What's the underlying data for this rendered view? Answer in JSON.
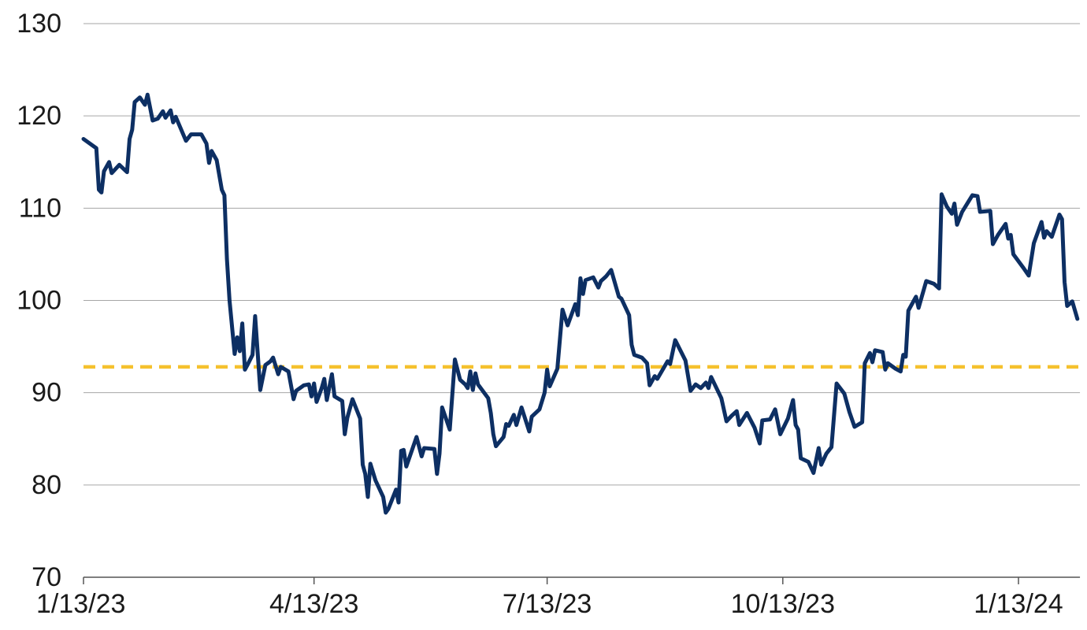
{
  "chart_data": {
    "type": "line",
    "color": "#0d2f63",
    "grid": true,
    "ylim": [
      70,
      130
    ],
    "yticks": [
      70,
      80,
      90,
      100,
      110,
      120,
      130
    ],
    "xlim": [
      "2023-01-13",
      "2024-02-06"
    ],
    "xticks": [
      {
        "value": "2023-01-13",
        "label": "1/13/23"
      },
      {
        "value": "2023-04-13",
        "label": "4/13/23"
      },
      {
        "value": "2023-07-13",
        "label": "7/13/23"
      },
      {
        "value": "2023-10-13",
        "label": "10/13/23"
      },
      {
        "value": "2024-01-13",
        "label": "1/13/24"
      }
    ],
    "reference_line": {
      "value": 92.8,
      "color": "#f5c12e",
      "style": "dashed"
    },
    "x": [
      "2023-01-13",
      "2023-01-18",
      "2023-01-19",
      "2023-01-20",
      "2023-01-21",
      "2023-01-23",
      "2023-01-24",
      "2023-01-27",
      "2023-01-30",
      "2023-01-31",
      "2023-02-01",
      "2023-02-02",
      "2023-02-04",
      "2023-02-06",
      "2023-02-07",
      "2023-02-09",
      "2023-02-11",
      "2023-02-13",
      "2023-02-14",
      "2023-02-16",
      "2023-02-17",
      "2023-02-18",
      "2023-02-22",
      "2023-02-24",
      "2023-02-28",
      "2023-03-02",
      "2023-03-03",
      "2023-03-04",
      "2023-03-06",
      "2023-03-08",
      "2023-03-09",
      "2023-03-10",
      "2023-03-11",
      "2023-03-13",
      "2023-03-14",
      "2023-03-15",
      "2023-03-16",
      "2023-03-17",
      "2023-03-18",
      "2023-03-20",
      "2023-03-21",
      "2023-03-23",
      "2023-03-25",
      "2023-03-27",
      "2023-03-28",
      "2023-03-30",
      "2023-03-31",
      "2023-04-03",
      "2023-04-05",
      "2023-04-06",
      "2023-04-09",
      "2023-04-11",
      "2023-04-12",
      "2023-04-13",
      "2023-04-14",
      "2023-04-16",
      "2023-04-17",
      "2023-04-18",
      "2023-04-20",
      "2023-04-21",
      "2023-04-24",
      "2023-04-25",
      "2023-04-26",
      "2023-04-28",
      "2023-05-01",
      "2023-05-02",
      "2023-05-03",
      "2023-05-04",
      "2023-05-05",
      "2023-05-07",
      "2023-05-10",
      "2023-05-11",
      "2023-05-12",
      "2023-05-15",
      "2023-05-16",
      "2023-05-17",
      "2023-05-18",
      "2023-05-19",
      "2023-05-23",
      "2023-05-25",
      "2023-05-26",
      "2023-05-30",
      "2023-05-31",
      "2023-06-01",
      "2023-06-02",
      "2023-06-05",
      "2023-06-07",
      "2023-06-09",
      "2023-06-11",
      "2023-06-12",
      "2023-06-13",
      "2023-06-14",
      "2023-06-15",
      "2023-06-16",
      "2023-06-20",
      "2023-06-21",
      "2023-06-22",
      "2023-06-23",
      "2023-06-26",
      "2023-06-27",
      "2023-06-28",
      "2023-06-30",
      "2023-07-01",
      "2023-07-03",
      "2023-07-06",
      "2023-07-07",
      "2023-07-10",
      "2023-07-12",
      "2023-07-13",
      "2023-07-14",
      "2023-07-17",
      "2023-07-19",
      "2023-07-21",
      "2023-07-24",
      "2023-07-25",
      "2023-07-26",
      "2023-07-27",
      "2023-07-28",
      "2023-07-31",
      "2023-08-02",
      "2023-08-03",
      "2023-08-05",
      "2023-08-07",
      "2023-08-10",
      "2023-08-11",
      "2023-08-14",
      "2023-08-15",
      "2023-08-16",
      "2023-08-19",
      "2023-08-21",
      "2023-08-22",
      "2023-08-24",
      "2023-08-25",
      "2023-08-29",
      "2023-08-30",
      "2023-09-01",
      "2023-09-05",
      "2023-09-07",
      "2023-09-09",
      "2023-09-11",
      "2023-09-13",
      "2023-09-14",
      "2023-09-15",
      "2023-09-19",
      "2023-09-21",
      "2023-09-23",
      "2023-09-25",
      "2023-09-26",
      "2023-09-29",
      "2023-10-02",
      "2023-10-04",
      "2023-10-05",
      "2023-10-08",
      "2023-10-10",
      "2023-10-12",
      "2023-10-15",
      "2023-10-17",
      "2023-10-18",
      "2023-10-19",
      "2023-10-20",
      "2023-10-23",
      "2023-10-25",
      "2023-10-27",
      "2023-10-28",
      "2023-10-30",
      "2023-11-01",
      "2023-11-03",
      "2023-11-06",
      "2023-11-08",
      "2023-11-10",
      "2023-11-13",
      "2023-11-14",
      "2023-11-16",
      "2023-11-17",
      "2023-11-18",
      "2023-11-21",
      "2023-11-22",
      "2023-11-23",
      "2023-11-26",
      "2023-11-28",
      "2023-11-29",
      "2023-11-30",
      "2023-12-01",
      "2023-12-04",
      "2023-12-05",
      "2023-12-08",
      "2023-12-11",
      "2023-12-13",
      "2023-12-14",
      "2023-12-16",
      "2023-12-18",
      "2023-12-19",
      "2023-12-20",
      "2023-12-22",
      "2023-12-26",
      "2023-12-28",
      "2023-12-29",
      "2024-01-02",
      "2024-01-03",
      "2024-01-05",
      "2024-01-08",
      "2024-01-09",
      "2024-01-10",
      "2024-01-11",
      "2024-01-15",
      "2024-01-17",
      "2024-01-19",
      "2024-01-22",
      "2024-01-23",
      "2024-01-24",
      "2024-01-26",
      "2024-01-29",
      "2024-01-30",
      "2024-01-31",
      "2024-02-01",
      "2024-02-03",
      "2024-02-05"
    ],
    "values": [
      117.5,
      116.5,
      112,
      111.7,
      114,
      115,
      113.8,
      114.7,
      113.9,
      117.5,
      118.5,
      121.5,
      122,
      121.2,
      122.3,
      119.5,
      119.7,
      120.5,
      119.8,
      120.6,
      119.3,
      119.9,
      117.3,
      118,
      118,
      117,
      114.9,
      116.2,
      115.2,
      112,
      111.4,
      104.5,
      100,
      94.2,
      96,
      94.5,
      97.5,
      92.5,
      93,
      94.1,
      98.3,
      90.3,
      93,
      93.4,
      93.8,
      92,
      92.8,
      92.3,
      89.3,
      90.2,
      90.8,
      90.9,
      89.6,
      91,
      89,
      90.5,
      91.5,
      89.2,
      92,
      89.6,
      89.1,
      85.5,
      87.3,
      89.3,
      87.2,
      82.2,
      81.2,
      78.7,
      82.3,
      80.5,
      78.7,
      77,
      77.4,
      79.5,
      78.1,
      83.7,
      83.8,
      82,
      85.2,
      83.1,
      84,
      83.9,
      81.2,
      83.4,
      88.4,
      86,
      93.6,
      91.4,
      90.9,
      90.5,
      92.3,
      90.3,
      92.1,
      90.9,
      89.4,
      87.8,
      85.5,
      84.2,
      85.2,
      86.6,
      86.4,
      87.6,
      86.5,
      88.4,
      85.8,
      87.4,
      88.2,
      90,
      92.5,
      90.7,
      92.6,
      99,
      97.3,
      99.6,
      98.4,
      102.4,
      100.7,
      102.2,
      102.5,
      101.4,
      102.1,
      102.6,
      103.3,
      100.4,
      100.2,
      98.4,
      95.2,
      94.1,
      93.8,
      93.2,
      90.8,
      91.8,
      91.5,
      93.4,
      93.1,
      95.7,
      93.5,
      90.2,
      90.9,
      90.5,
      91.1,
      90.5,
      91.7,
      89.4,
      86.9,
      87.5,
      88,
      86.5,
      87.8,
      86.2,
      84.5,
      87,
      87.1,
      88.2,
      85.5,
      87.2,
      89.2,
      86.5,
      86,
      82.9,
      82.5,
      81.3,
      84,
      82.2,
      83.4,
      84.1,
      91,
      89.9,
      87.9,
      86.3,
      86.8,
      93.2,
      94.3,
      93.3,
      94.6,
      94.4,
      92.5,
      93.2,
      92.6,
      92.3,
      94.1,
      93.9,
      98.9,
      100.4,
      99.2,
      102.1,
      101.8,
      101.3,
      111.5,
      110.2,
      109.4,
      110.5,
      108.2,
      109.6,
      111.4,
      111.3,
      109.6,
      109.7,
      106.1,
      107.1,
      108.3,
      106.7,
      107.1,
      105,
      103.5,
      102.7,
      106.2,
      108.5,
      106.8,
      107.5,
      106.9,
      109.3,
      108.8,
      102,
      99.4,
      99.9,
      98
    ]
  }
}
